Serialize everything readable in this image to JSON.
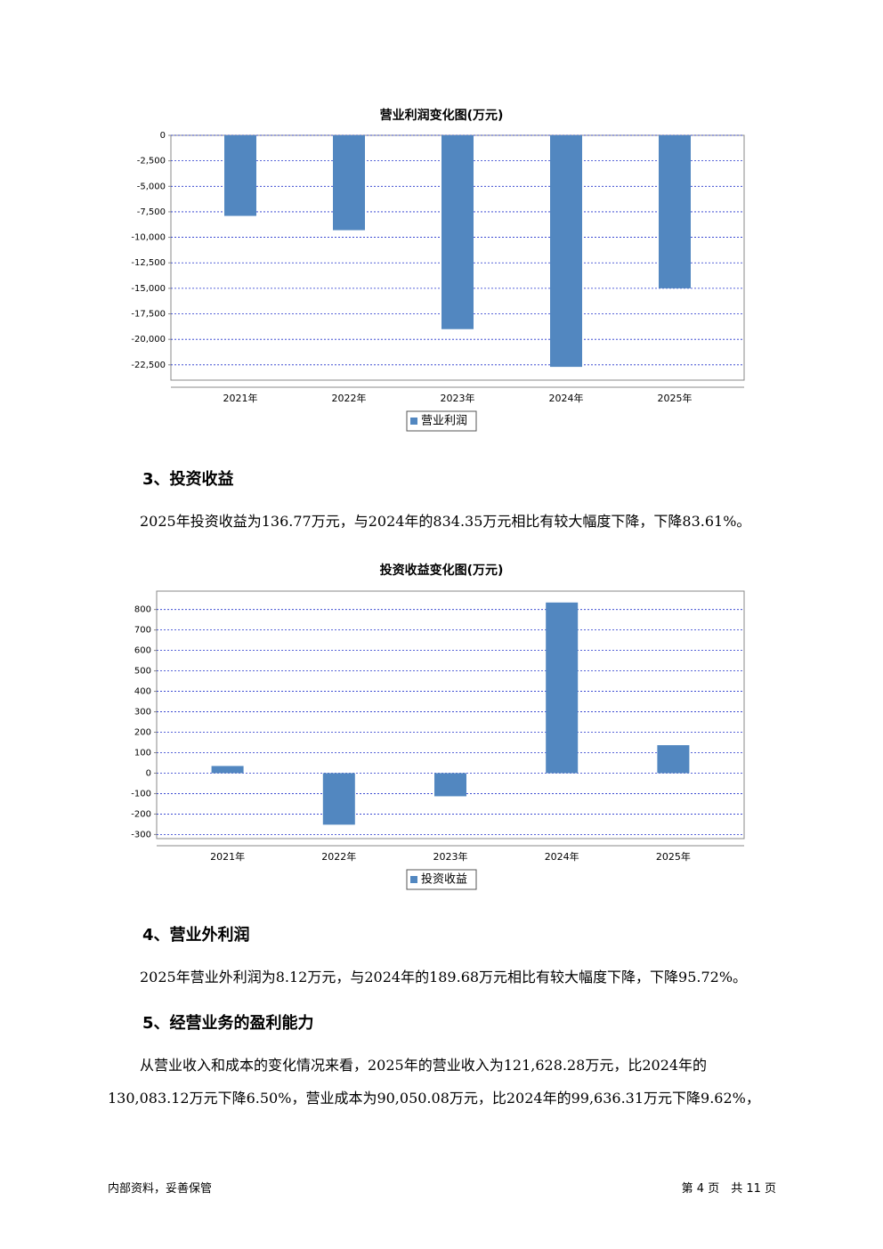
{
  "chart_data": [
    {
      "type": "bar",
      "title": "营业利润变化图(万元)",
      "categories": [
        "2021年",
        "2022年",
        "2023年",
        "2024年",
        "2025年"
      ],
      "series": [
        {
          "name": "营业利润",
          "color": "#5287c0",
          "values": [
            -7900,
            -9300,
            -19000,
            -22700,
            -15000
          ]
        }
      ],
      "ylim": [
        -24000,
        0
      ],
      "yticks": [
        0,
        {
          "value": -2500,
          "label": "-2,500"
        },
        {
          "value": -5000,
          "label": "-5,000"
        },
        {
          "value": -7500,
          "label": "-7,500"
        },
        {
          "value": -10000,
          "label": "-10,000"
        },
        {
          "value": -12500,
          "label": "-12,500"
        },
        {
          "value": -15000,
          "label": "-15,000"
        },
        {
          "value": -17500,
          "label": "-17,500"
        },
        {
          "value": -20000,
          "label": "-20,000"
        },
        {
          "value": -22500,
          "label": "-22,500"
        }
      ],
      "grid": true,
      "legend": "bottom"
    },
    {
      "type": "bar",
      "title": "投资收益变化图(万元)",
      "categories": [
        "2021年",
        "2022年",
        "2023年",
        "2024年",
        "2025年"
      ],
      "series": [
        {
          "name": "投资收益",
          "color": "#5287c0",
          "values": [
            35,
            -252,
            -113,
            834.35,
            136.77
          ]
        }
      ],
      "ylim": [
        -320,
        890
      ],
      "yticks": [
        -300,
        -200,
        -100,
        0,
        100,
        200,
        300,
        400,
        500,
        600,
        700,
        800
      ],
      "grid": true,
      "legend": "bottom"
    }
  ],
  "sections": [
    {
      "heading": "3、投资收益",
      "paragraph": "2025年投资收益为136.77万元，与2024年的834.35万元相比有较大幅度下降，下降83.61%。"
    },
    {
      "heading": "4、营业外利润",
      "paragraph": "2025年营业外利润为8.12万元，与2024年的189.68万元相比有较大幅度下降，下降95.72%。"
    },
    {
      "heading": "5、经营业务的盈利能力",
      "paragraph": "从营业收入和成本的变化情况来看，2025年的营业收入为121,628.28万元，比2024年的130,083.12万元下降6.50%，营业成本为90,050.08万元，比2024年的99,636.31万元下降9.62%，"
    }
  ],
  "footer": {
    "left": "内部资料，妥善保管",
    "right": "第 4 页　共 11 页"
  }
}
